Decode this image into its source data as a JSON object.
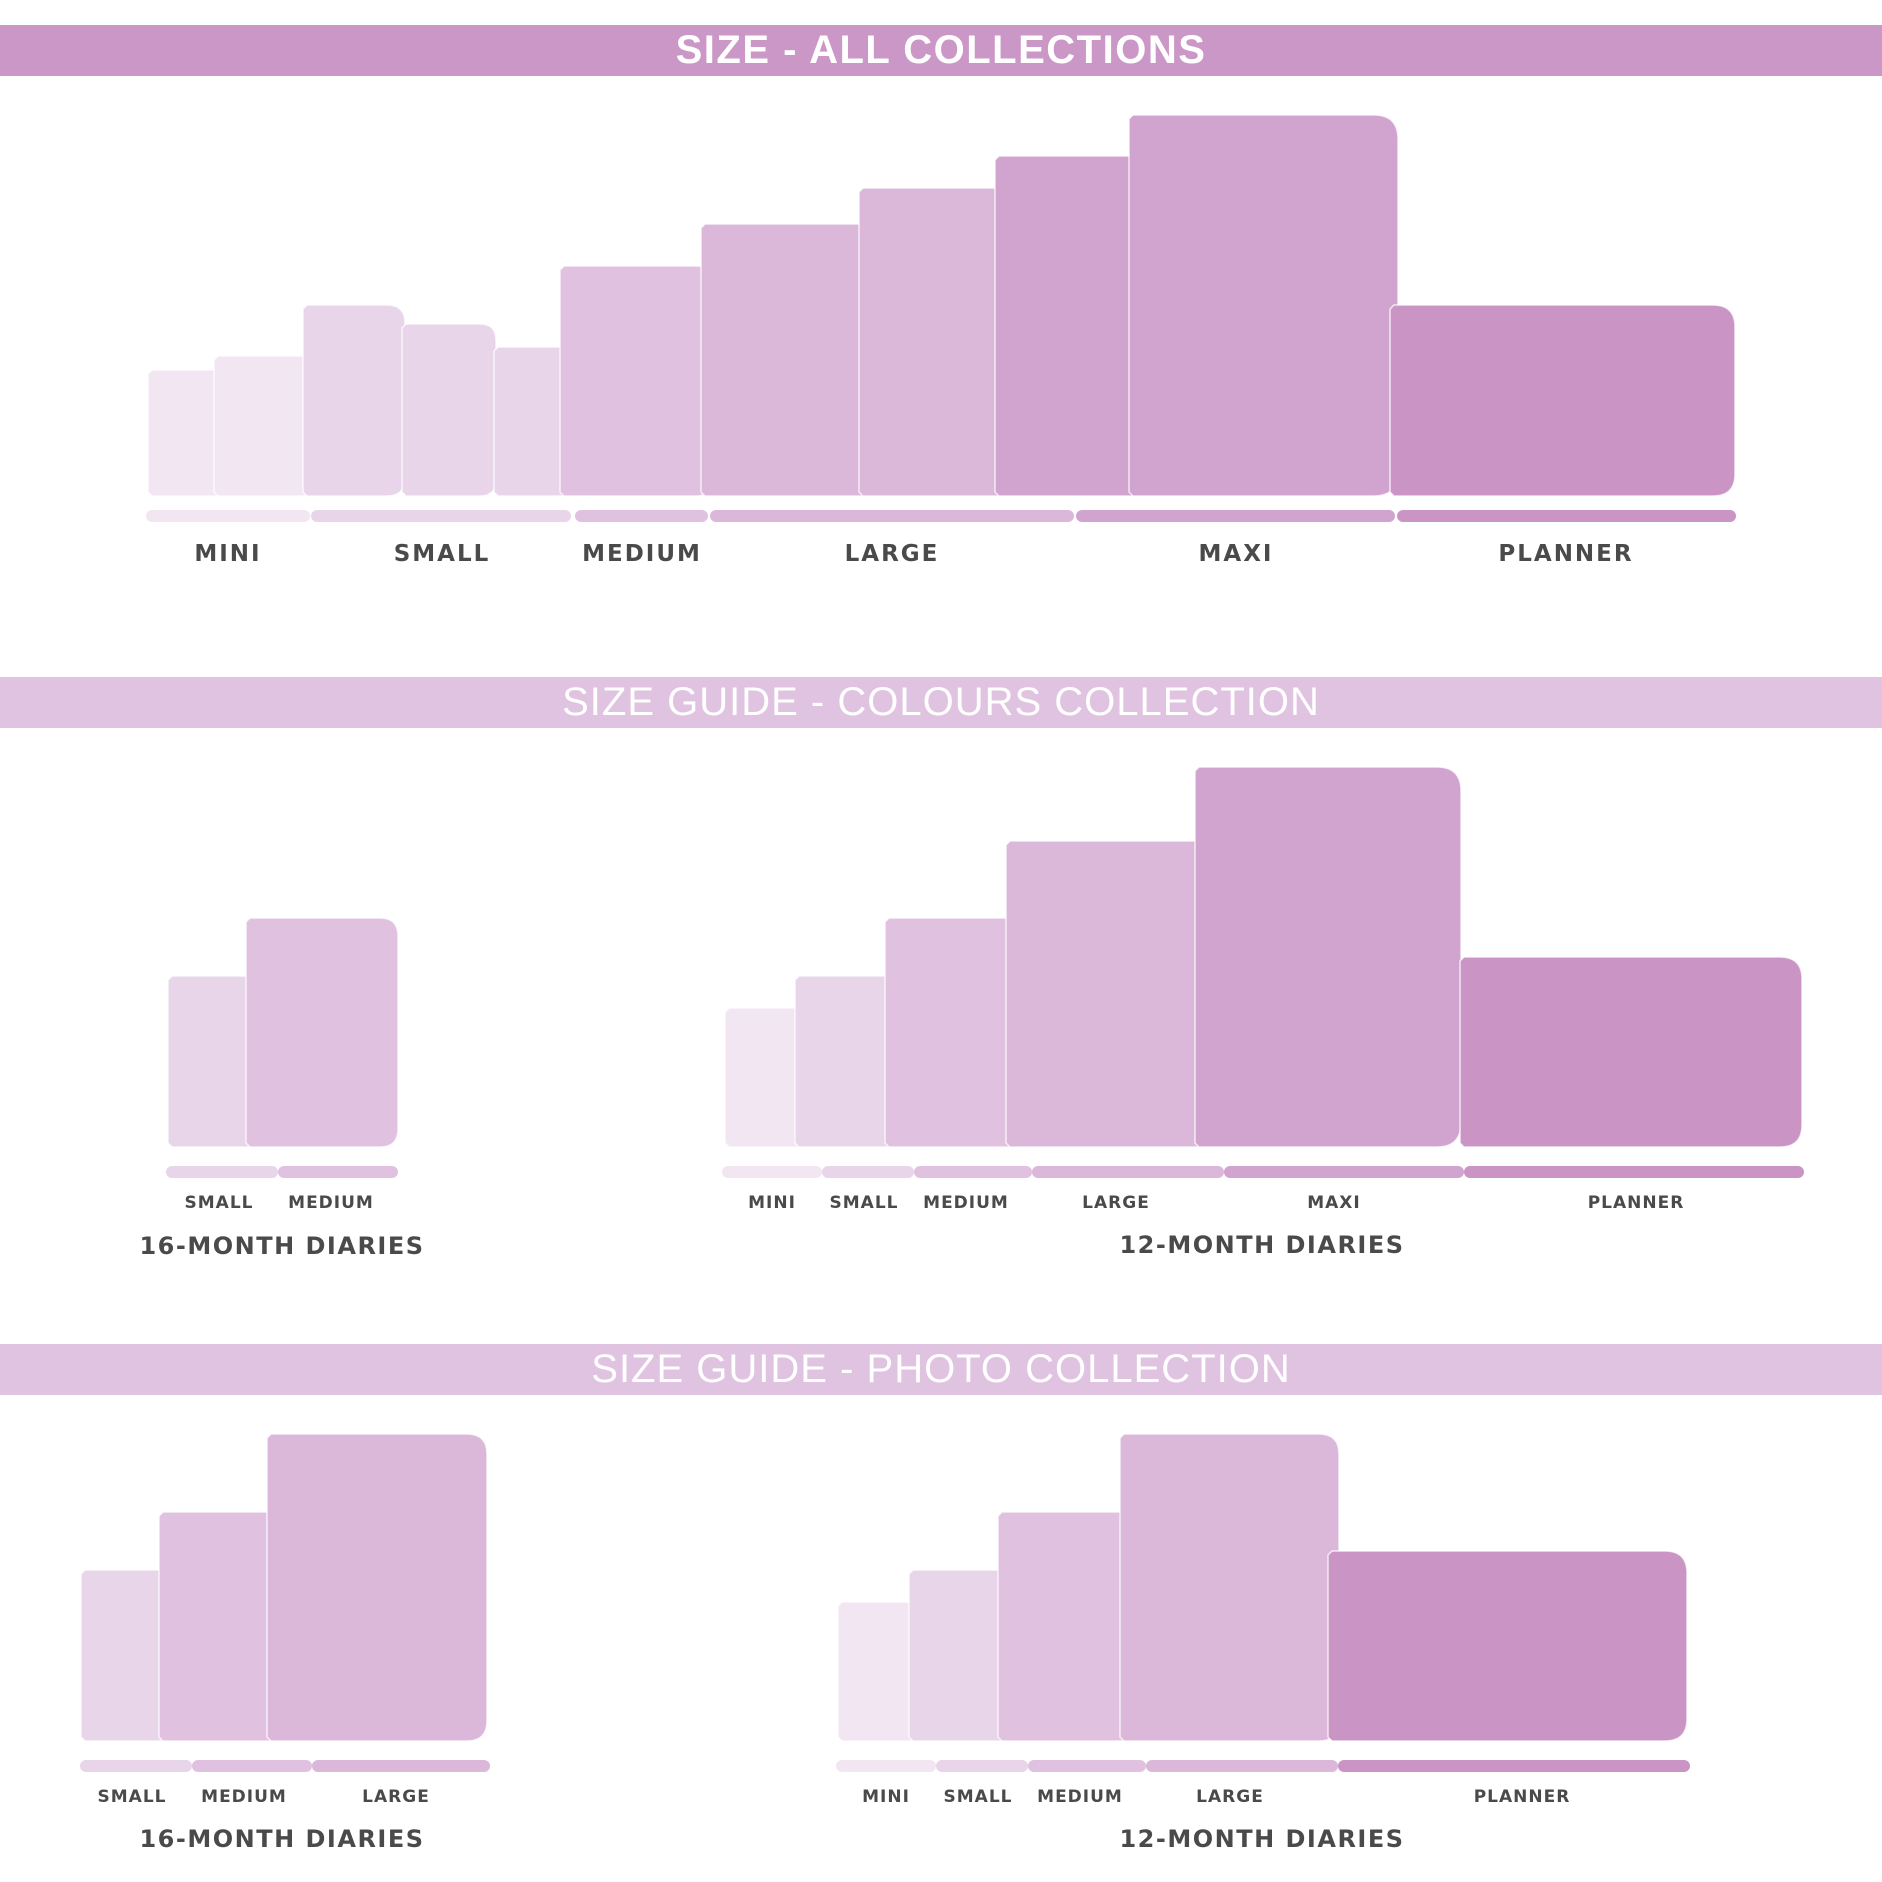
{
  "banners": {
    "all": "SIZE - ALL COLLECTIONS",
    "colours": "SIZE GUIDE - COLOURS COLLECTION",
    "photo": "SIZE GUIDE - PHOTO COLLECTION"
  },
  "palette": {
    "tone1": "#f2e6f3",
    "tone2": "#e8d5e9",
    "tone3": "#e0c2e0",
    "tone4": "#dbb8da",
    "tone5": "#d1a3cf",
    "tone6": "#ca95c4"
  },
  "sections": {
    "all": {
      "labels": [
        "MINI",
        "SMALL",
        "MEDIUM",
        "LARGE",
        "MAXI",
        "PLANNER"
      ]
    },
    "colours16": {
      "caption": "16-MONTH DIARIES",
      "labels": [
        "SMALL",
        "MEDIUM"
      ]
    },
    "colours12": {
      "caption": "12-MONTH DIARIES",
      "labels": [
        "MINI",
        "SMALL",
        "MEDIUM",
        "LARGE",
        "MAXI",
        "PLANNER"
      ]
    },
    "photo16": {
      "caption": "16-MONTH DIARIES",
      "labels": [
        "SMALL",
        "MEDIUM",
        "LARGE"
      ]
    },
    "photo12": {
      "caption": "12-MONTH DIARIES",
      "labels": [
        "MINI",
        "SMALL",
        "MEDIUM",
        "LARGE",
        "PLANNER"
      ]
    }
  }
}
